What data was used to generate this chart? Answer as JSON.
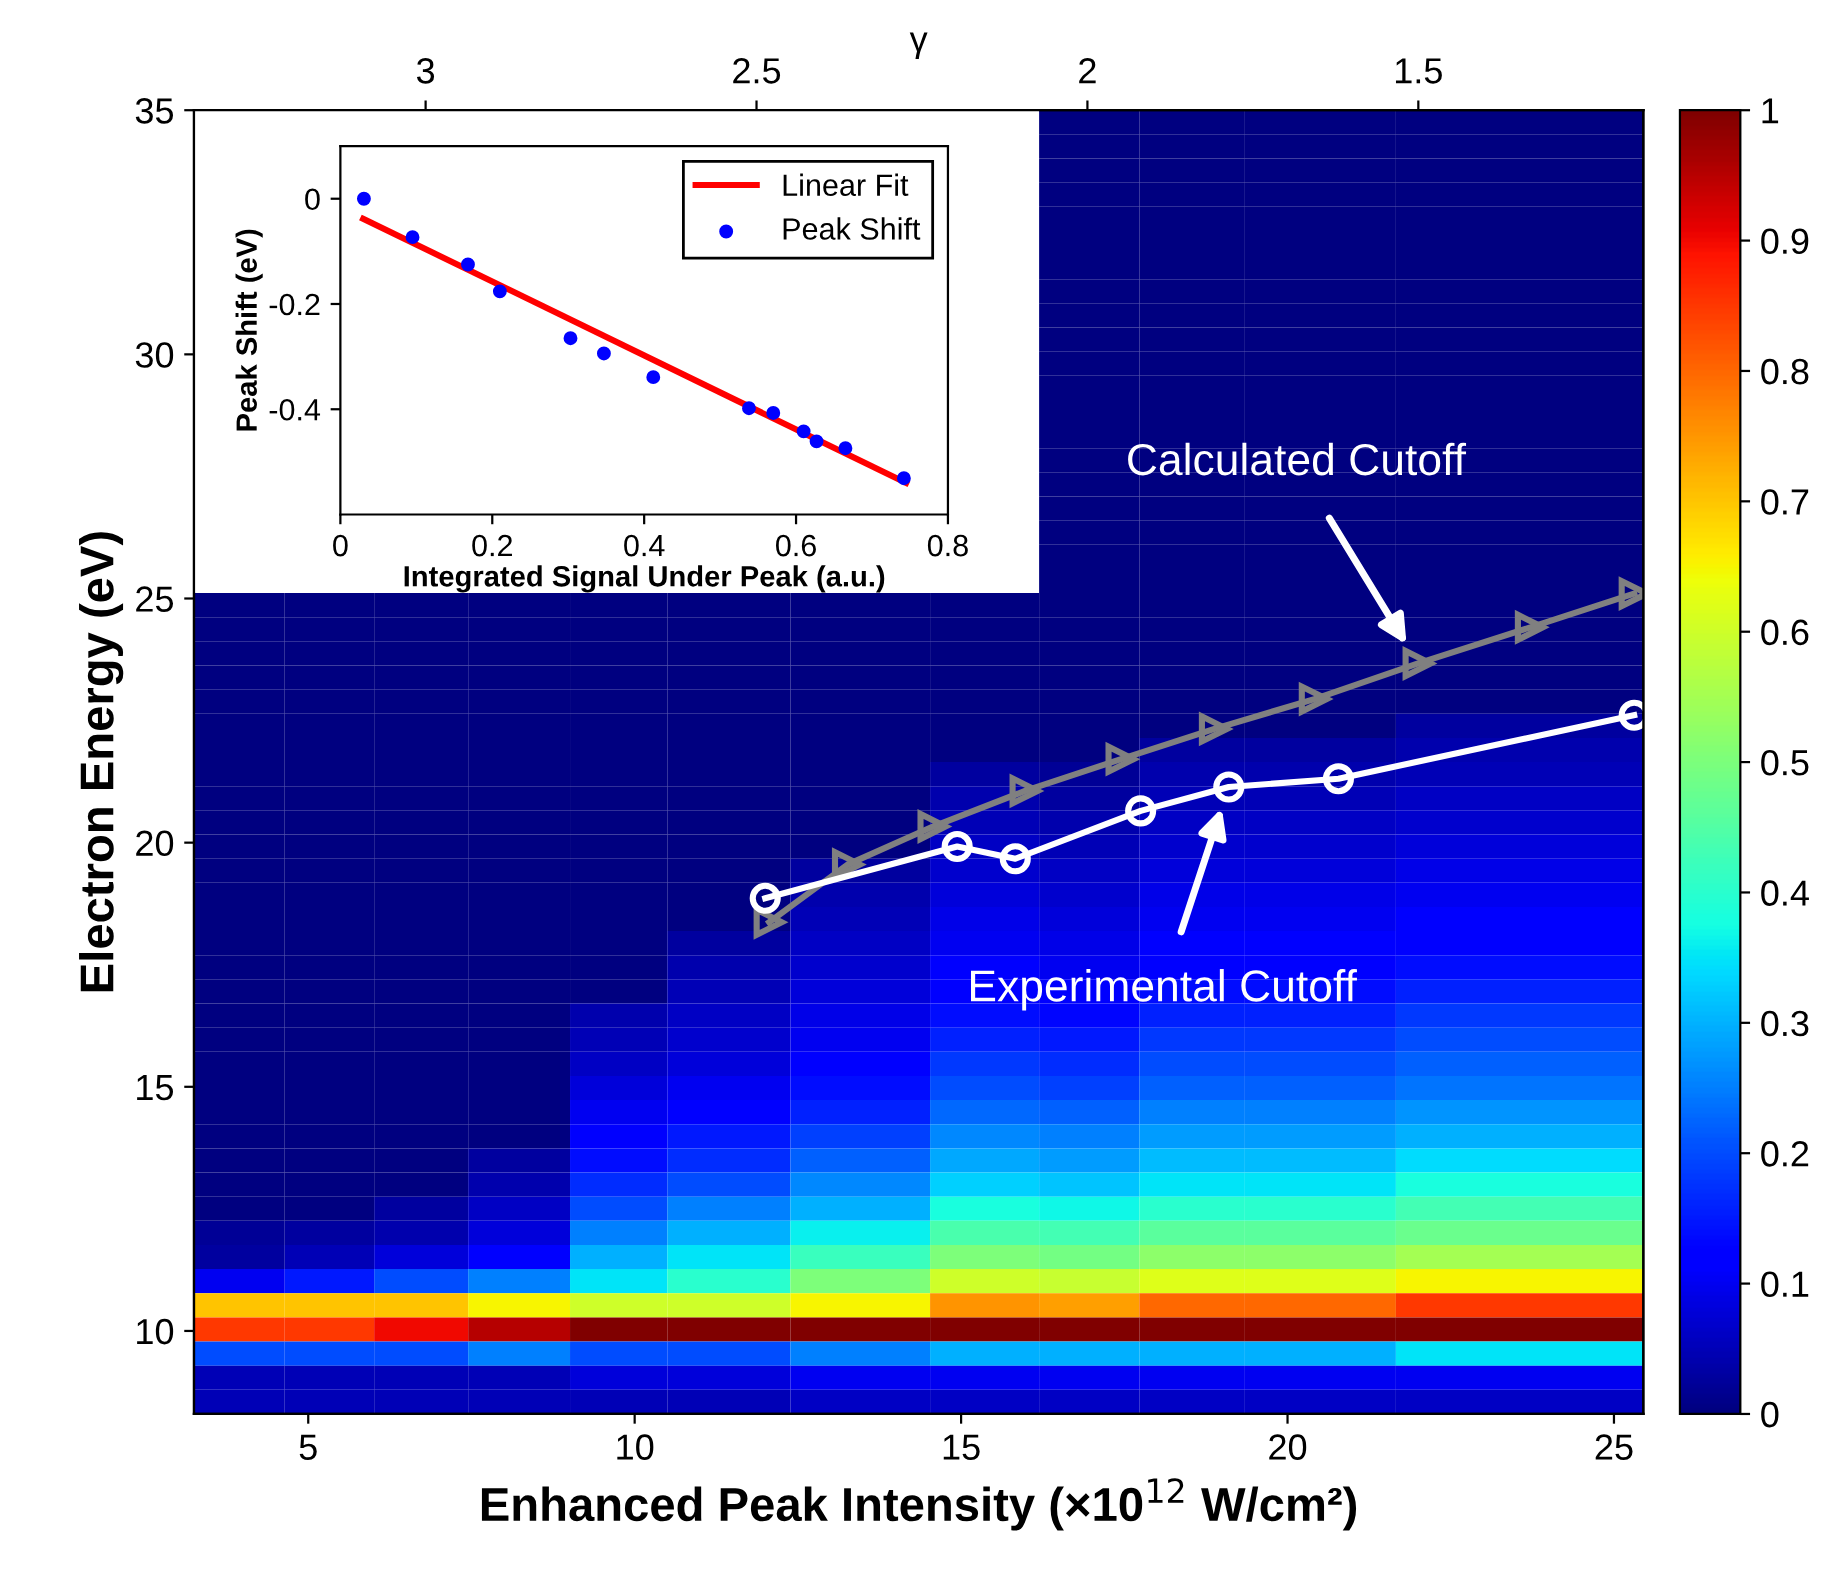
{
  "chart_data": [
    {
      "type": "heatmap",
      "xlabel": "Enhanced Peak Intensity (×10$^{12}$ W/cm²)",
      "ylabel": "Electron Energy (eV)",
      "x2label": "γ",
      "x": [
        3.93,
        5.35,
        6.67,
        8.23,
        9.79,
        11.21,
        13.56,
        15.49,
        16.9,
        18.56,
        20.11,
        23.21
      ],
      "cells": [
        [
          null,
          null,
          null,
          null,
          null,
          null,
          null,
          null,
          0,
          0,
          0,
          0
        ],
        [
          null,
          null,
          null,
          null,
          null,
          null,
          null,
          null,
          0,
          0,
          0,
          0
        ],
        [
          null,
          null,
          null,
          null,
          null,
          null,
          null,
          null,
          0,
          0,
          0,
          0
        ],
        [
          null,
          null,
          null,
          null,
          null,
          null,
          null,
          null,
          0,
          0,
          0,
          0
        ],
        [
          null,
          null,
          null,
          null,
          null,
          null,
          null,
          null,
          0,
          0,
          0,
          0
        ],
        [
          null,
          null,
          null,
          null,
          null,
          null,
          null,
          null,
          0,
          0,
          0,
          0
        ],
        [
          null,
          null,
          null,
          null,
          null,
          null,
          null,
          null,
          0,
          0,
          0,
          0
        ],
        [
          null,
          null,
          null,
          null,
          null,
          null,
          null,
          null,
          0,
          0,
          0,
          0
        ],
        [
          null,
          null,
          null,
          null,
          null,
          null,
          null,
          null,
          0,
          0,
          0,
          0
        ],
        [
          null,
          null,
          null,
          null,
          null,
          null,
          null,
          null,
          0,
          0,
          0,
          0
        ],
        [
          null,
          null,
          null,
          null,
          null,
          null,
          null,
          null,
          0,
          0,
          0,
          0
        ],
        [
          null,
          null,
          null,
          null,
          null,
          null,
          null,
          null,
          0,
          0,
          0,
          0
        ],
        [
          null,
          null,
          null,
          null,
          null,
          null,
          null,
          null,
          0,
          0,
          0,
          0
        ],
        [
          null,
          null,
          null,
          null,
          null,
          null,
          null,
          null,
          0,
          0,
          0,
          0
        ],
        [
          null,
          null,
          null,
          null,
          null,
          null,
          null,
          null,
          0,
          0,
          0,
          0
        ],
        [
          null,
          null,
          null,
          null,
          null,
          null,
          null,
          null,
          0,
          0,
          0,
          0
        ],
        [
          null,
          null,
          null,
          null,
          null,
          null,
          null,
          null,
          0,
          0,
          0,
          0
        ],
        [
          null,
          null,
          null,
          null,
          null,
          null,
          null,
          null,
          0,
          0,
          0,
          0
        ],
        [
          null,
          null,
          null,
          null,
          null,
          null,
          null,
          null,
          0,
          0,
          0,
          0
        ],
        [
          null,
          null,
          null,
          null,
          null,
          null,
          null,
          null,
          0,
          0,
          0,
          0
        ],
        [
          0,
          0,
          0,
          0,
          0,
          0,
          0,
          0,
          0,
          0,
          0,
          0
        ],
        [
          0,
          0,
          0,
          0,
          0,
          0,
          0,
          0,
          0,
          0,
          0,
          0
        ],
        [
          0,
          0,
          0,
          0,
          0,
          0,
          0,
          0,
          0,
          0,
          0,
          0
        ],
        [
          0,
          0,
          0,
          0,
          0,
          0,
          0,
          0,
          0,
          0,
          0,
          0
        ],
        [
          0,
          0,
          0,
          0,
          0,
          0,
          0,
          0,
          0,
          0,
          0,
          0
        ],
        [
          0,
          0,
          0,
          0,
          0,
          0,
          0,
          0,
          0,
          0,
          0,
          0.03
        ],
        [
          0,
          0,
          0,
          0,
          0,
          0,
          0,
          0,
          0,
          0.03,
          0.03,
          0.04
        ],
        [
          0,
          0,
          0,
          0,
          0,
          0,
          0,
          0.03,
          0.02,
          0.04,
          0.04,
          0.05
        ],
        [
          0,
          0,
          0,
          0,
          0,
          0,
          0,
          0.04,
          0.03,
          0.05,
          0.05,
          0.06
        ],
        [
          0,
          0,
          0,
          0,
          0,
          0,
          0,
          0.05,
          0.04,
          0.06,
          0.06,
          0.07
        ],
        [
          0,
          0,
          0,
          0,
          0,
          0,
          0,
          0.06,
          0.05,
          0.07,
          0.07,
          0.08
        ],
        [
          0,
          0,
          0,
          0,
          0,
          0,
          0.03,
          0.07,
          0.06,
          0.08,
          0.08,
          0.09
        ],
        [
          0,
          0,
          0,
          0,
          0,
          0,
          0.04,
          0.08,
          0.07,
          0.09,
          0.09,
          0.1
        ],
        [
          0,
          0,
          0,
          0,
          0,
          0,
          0.05,
          0.09,
          0.08,
          0.1,
          0.1,
          0.11
        ],
        [
          0,
          0,
          0,
          0,
          0,
          0.03,
          0.06,
          0.1,
          0.09,
          0.11,
          0.11,
          0.12
        ],
        [
          0,
          0,
          0,
          0,
          0,
          0.04,
          0.07,
          0.11,
          0.1,
          0.12,
          0.12,
          0.14
        ],
        [
          0,
          0,
          0,
          0,
          0,
          0.05,
          0.08,
          0.12,
          0.11,
          0.14,
          0.14,
          0.16
        ],
        [
          0,
          0,
          0,
          0,
          0.04,
          0.06,
          0.09,
          0.14,
          0.13,
          0.16,
          0.16,
          0.18
        ],
        [
          0,
          0,
          0,
          0,
          0.05,
          0.07,
          0.1,
          0.16,
          0.15,
          0.18,
          0.18,
          0.2
        ],
        [
          0,
          0,
          0,
          0,
          0.06,
          0.08,
          0.12,
          0.18,
          0.17,
          0.2,
          0.2,
          0.22
        ],
        [
          0,
          0,
          0,
          0,
          0.08,
          0.1,
          0.14,
          0.2,
          0.19,
          0.22,
          0.22,
          0.24
        ],
        [
          0,
          0,
          0,
          0,
          0.1,
          0.12,
          0.16,
          0.23,
          0.22,
          0.25,
          0.25,
          0.27
        ],
        [
          0,
          0,
          0,
          0,
          0.12,
          0.15,
          0.19,
          0.26,
          0.25,
          0.28,
          0.28,
          0.3
        ],
        [
          0,
          0,
          0,
          0.03,
          0.14,
          0.17,
          0.22,
          0.29,
          0.28,
          0.31,
          0.31,
          0.34
        ],
        [
          0,
          0,
          0,
          0.04,
          0.17,
          0.2,
          0.26,
          0.33,
          0.32,
          0.35,
          0.35,
          0.38
        ],
        [
          0,
          0,
          0.03,
          0.06,
          0.2,
          0.25,
          0.3,
          0.38,
          0.37,
          0.4,
          0.4,
          0.43
        ],
        [
          0.02,
          0.03,
          0.04,
          0.08,
          0.25,
          0.3,
          0.36,
          0.44,
          0.43,
          0.46,
          0.46,
          0.48
        ],
        [
          0.03,
          0.05,
          0.08,
          0.12,
          0.3,
          0.35,
          0.42,
          0.5,
          0.49,
          0.52,
          0.52,
          0.55
        ],
        [
          0.1,
          0.15,
          0.2,
          0.25,
          0.35,
          0.4,
          0.5,
          0.6,
          0.59,
          0.62,
          0.62,
          0.65
        ],
        [
          0.7,
          0.7,
          0.7,
          0.65,
          0.6,
          0.6,
          0.65,
          0.75,
          0.74,
          0.8,
          0.8,
          0.85
        ],
        [
          0.85,
          0.85,
          0.9,
          0.95,
          1,
          1,
          1,
          1,
          1,
          1,
          1,
          1
        ],
        [
          0.2,
          0.2,
          0.2,
          0.25,
          0.2,
          0.2,
          0.25,
          0.3,
          0.3,
          0.3,
          0.3,
          0.35
        ],
        [
          0.05,
          0.05,
          0.05,
          0.05,
          0.08,
          0.08,
          0.1,
          0.1,
          0.1,
          0.1,
          0.1,
          0.1
        ],
        [
          0.05,
          0.05,
          0.05,
          0.05,
          0.05,
          0.05,
          0.06,
          0.06,
          0.06,
          0.06,
          0.06,
          0.06
        ]
      ],
      "clim": [
        0,
        1
      ],
      "cticks": [
        0,
        0.1,
        0.2,
        0.3,
        0.4,
        0.5,
        0.6,
        0.7,
        0.8,
        0.9,
        1
      ],
      "xlim": [
        3.25,
        25.45
      ],
      "xticks": [
        5,
        10,
        15,
        20,
        25
      ],
      "ylim": [
        8.3,
        35
      ],
      "yticks": [
        10,
        15,
        20,
        25,
        30,
        35
      ],
      "x2lim": [
        3.35,
        1.16
      ],
      "x2ticks": [
        3,
        2.5,
        2,
        1.5
      ],
      "series": [
        {
          "name": "Calculated Cutoff",
          "type": "line",
          "color": "#808080",
          "marker": "triangle",
          "line_style": "solid",
          "x": [
            12.06,
            13.26,
            14.57,
            15.98,
            17.45,
            18.88,
            20.41,
            22.0,
            23.72,
            25.31
          ],
          "values": [
            18.37,
            19.55,
            20.33,
            21.06,
            21.71,
            22.33,
            22.94,
            23.67,
            24.41,
            25.1
          ]
        },
        {
          "name": "Experimental Cutoff",
          "type": "line",
          "color": "#ffffff",
          "marker": "circle",
          "line_style": "solid",
          "x": [
            12.0,
            14.94,
            15.83,
            17.75,
            19.1,
            20.78,
            25.31
          ],
          "values": [
            18.86,
            19.92,
            19.67,
            20.65,
            21.14,
            21.31,
            22.61
          ]
        }
      ],
      "grid": false,
      "legend": false
    },
    {
      "type": "scatter",
      "xlabel": "Integrated Signal Under Peak (a.u.)",
      "ylabel": "Peak Shift (eV)",
      "xlim": [
        0,
        0.8
      ],
      "xticks": [
        0,
        0.2,
        0.4,
        0.6,
        0.8
      ],
      "ylim": [
        -0.6,
        0.1
      ],
      "yticks": [
        0,
        -0.2,
        -0.4
      ],
      "grid": false,
      "legend": "top right",
      "series": [
        {
          "name": "Linear Fit",
          "type": "line",
          "color": "#ff0000",
          "x": [
            0.03,
            0.745
          ],
          "values": [
            -0.038,
            -0.54
          ]
        },
        {
          "name": "Peak Shift",
          "type": "scatter",
          "color": "#0000ff",
          "x": [
            0.031,
            0.095,
            0.168,
            0.21,
            0.303,
            0.347,
            0.412,
            0.538,
            0.57,
            0.61,
            0.627,
            0.665,
            0.742
          ],
          "values": [
            0.0,
            -0.073,
            -0.125,
            -0.176,
            -0.265,
            -0.294,
            -0.339,
            -0.398,
            -0.407,
            -0.442,
            -0.461,
            -0.474,
            -0.531
          ]
        }
      ]
    }
  ]
}
